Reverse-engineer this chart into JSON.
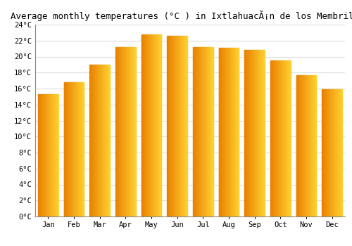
{
  "title": "Average monthly temperatures (°C ) in IxtlahuacÃ¡n de los Membrillos",
  "months": [
    "Jan",
    "Feb",
    "Mar",
    "Apr",
    "May",
    "Jun",
    "Jul",
    "Aug",
    "Sep",
    "Oct",
    "Nov",
    "Dec"
  ],
  "temperatures": [
    15.3,
    16.8,
    19.0,
    21.2,
    22.8,
    22.6,
    21.2,
    21.1,
    20.8,
    19.5,
    17.7,
    15.9
  ],
  "ylim": [
    0,
    24
  ],
  "yticks": [
    0,
    2,
    4,
    6,
    8,
    10,
    12,
    14,
    16,
    18,
    20,
    22,
    24
  ],
  "bar_color_left": "#E88000",
  "bar_color_right": "#FFD030",
  "background_color": "#FFFFFF",
  "grid_color": "#DDDDDD",
  "title_fontsize": 9,
  "tick_fontsize": 7.5,
  "bar_width": 0.78
}
